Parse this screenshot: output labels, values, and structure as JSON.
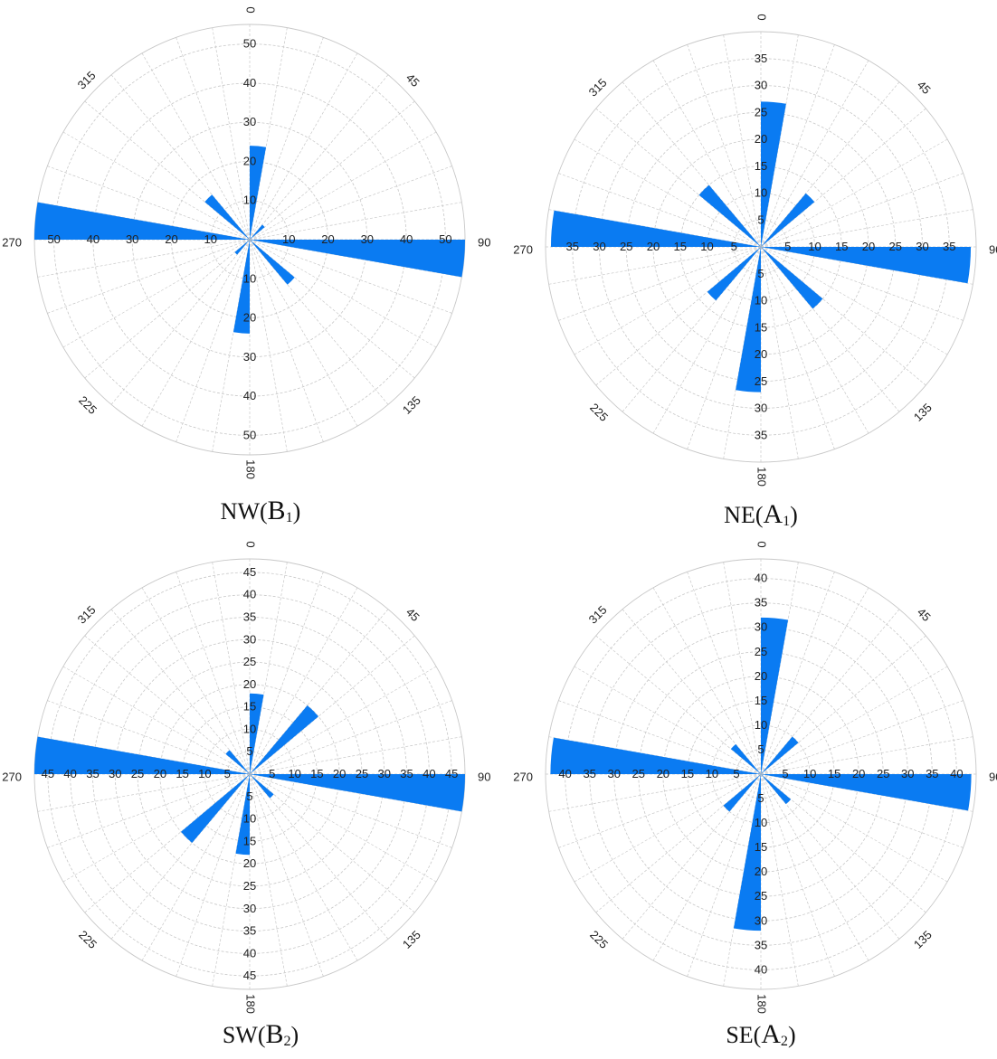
{
  "colors": {
    "petal": "#0A7BF2",
    "grid": "#c8c8c8",
    "label": "#222222"
  },
  "chart_data": [
    {
      "type": "rose",
      "caption": {
        "prefix": "NW(",
        "main": "B",
        "sub": "1",
        "suffix": ")"
      },
      "radial_range": [
        0,
        55
      ],
      "radial_ticks": [
        10,
        20,
        30,
        40,
        50
      ],
      "angle_labels": [
        "0",
        "45",
        "90",
        "135",
        "180",
        "225",
        "270",
        "315"
      ],
      "bin_width_deg": 10,
      "petals": [
        {
          "angle": 5,
          "value": 24
        },
        {
          "angle": 45,
          "value": 5
        },
        {
          "angle": 95,
          "value": 55
        },
        {
          "angle": 135,
          "value": 15
        },
        {
          "angle": 185,
          "value": 24
        },
        {
          "angle": 225,
          "value": 5
        },
        {
          "angle": 275,
          "value": 55
        },
        {
          "angle": 315,
          "value": 15
        }
      ]
    },
    {
      "type": "rose",
      "caption": {
        "prefix": "NE(",
        "main": "A",
        "sub": "1",
        "suffix": ")"
      },
      "radial_range": [
        0,
        40
      ],
      "radial_ticks": [
        5,
        10,
        15,
        20,
        25,
        30,
        35
      ],
      "angle_labels": [
        "0",
        "45",
        "90",
        "135",
        "180",
        "225",
        "270",
        "315"
      ],
      "bin_width_deg": 10,
      "petals": [
        {
          "angle": 5,
          "value": 27
        },
        {
          "angle": 45,
          "value": 13
        },
        {
          "angle": 95,
          "value": 39
        },
        {
          "angle": 135,
          "value": 15
        },
        {
          "angle": 185,
          "value": 27
        },
        {
          "angle": 225,
          "value": 13
        },
        {
          "angle": 275,
          "value": 39
        },
        {
          "angle": 315,
          "value": 15
        }
      ]
    },
    {
      "type": "rose",
      "caption": {
        "prefix": "SW(",
        "main": "B",
        "sub": "2",
        "suffix": ")"
      },
      "radial_range": [
        0,
        48
      ],
      "radial_ticks": [
        5,
        10,
        15,
        20,
        25,
        30,
        35,
        40,
        45
      ],
      "angle_labels": [
        "0",
        "45",
        "90",
        "135",
        "180",
        "225",
        "270",
        "315"
      ],
      "bin_width_deg": 10,
      "petals": [
        {
          "angle": 5,
          "value": 18
        },
        {
          "angle": 45,
          "value": 20
        },
        {
          "angle": 95,
          "value": 48
        },
        {
          "angle": 135,
          "value": 7
        },
        {
          "angle": 185,
          "value": 18
        },
        {
          "angle": 225,
          "value": 20
        },
        {
          "angle": 275,
          "value": 48
        },
        {
          "angle": 315,
          "value": 7
        }
      ]
    },
    {
      "type": "rose",
      "caption": {
        "prefix": "SE(",
        "main": "A",
        "sub": "2",
        "suffix": ")"
      },
      "radial_range": [
        0,
        44
      ],
      "radial_ticks": [
        5,
        10,
        15,
        20,
        25,
        30,
        35,
        40
      ],
      "angle_labels": [
        "0",
        "45",
        "90",
        "135",
        "180",
        "225",
        "270",
        "315"
      ],
      "bin_width_deg": 10,
      "petals": [
        {
          "angle": 5,
          "value": 32
        },
        {
          "angle": 45,
          "value": 10
        },
        {
          "angle": 95,
          "value": 43
        },
        {
          "angle": 135,
          "value": 8
        },
        {
          "angle": 185,
          "value": 32
        },
        {
          "angle": 225,
          "value": 10
        },
        {
          "angle": 275,
          "value": 43
        },
        {
          "angle": 315,
          "value": 8
        }
      ]
    }
  ]
}
